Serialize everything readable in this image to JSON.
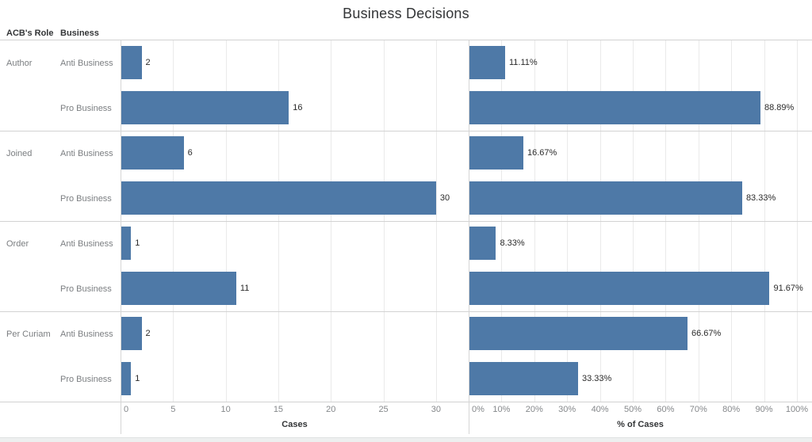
{
  "chart_data": {
    "type": "bar",
    "orientation": "horizontal",
    "title": "Business Decisions",
    "row_header_labels": [
      "ACB's Role",
      "Business"
    ],
    "groups": [
      "Author",
      "Joined",
      "Order",
      "Per Curiam"
    ],
    "categories_per_group": [
      "Anti Business",
      "Pro Business"
    ],
    "bar_color": "#4e79a7",
    "grid": true,
    "legend": "none",
    "panes": [
      {
        "xlabel": "Cases",
        "ticks": [
          0,
          5,
          10,
          15,
          20,
          25,
          30
        ],
        "tick_labels": [
          "0",
          "5",
          "10",
          "15",
          "20",
          "25",
          "30"
        ],
        "axis_max": 33.1,
        "values": [
          2,
          16,
          6,
          30,
          1,
          11,
          2,
          1
        ],
        "labels": [
          "2",
          "16",
          "6",
          "30",
          "1",
          "11",
          "2",
          "1"
        ]
      },
      {
        "xlabel": "% of Cases",
        "ticks": [
          0,
          10,
          20,
          30,
          40,
          50,
          60,
          70,
          80,
          90,
          100
        ],
        "tick_labels": [
          "0%",
          "10%",
          "20%",
          "30%",
          "40%",
          "50%",
          "60%",
          "70%",
          "80%",
          "90%",
          "100%"
        ],
        "axis_max": 104.6,
        "values": [
          11.11,
          88.89,
          16.67,
          83.33,
          8.33,
          91.67,
          66.67,
          33.33
        ],
        "labels": [
          "11.11%",
          "88.89%",
          "16.67%",
          "83.33%",
          "8.33%",
          "91.67%",
          "66.67%",
          "33.33%"
        ]
      }
    ]
  }
}
